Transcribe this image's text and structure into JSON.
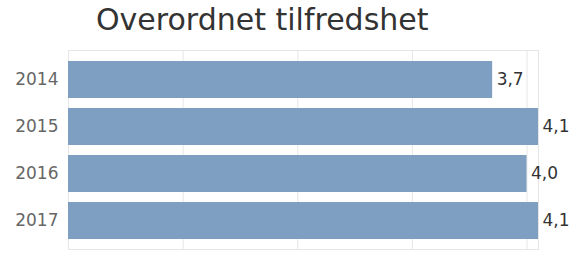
{
  "chart_data": {
    "type": "bar",
    "title": "Overordnet tilfredshet",
    "orientation": "horizontal",
    "categories": [
      "2014",
      "2015",
      "2016",
      "2017"
    ],
    "values": [
      3.7,
      4.1,
      4.0,
      4.1
    ],
    "value_labels": [
      "3,7",
      "4,1",
      "4,0",
      "4,1"
    ],
    "data_labels": true,
    "color": "#7f9fc2",
    "xlim": [
      0,
      4.1
    ],
    "xticks": [
      0,
      1,
      2,
      3,
      4
    ],
    "grid": true,
    "tick_labels": "y"
  }
}
